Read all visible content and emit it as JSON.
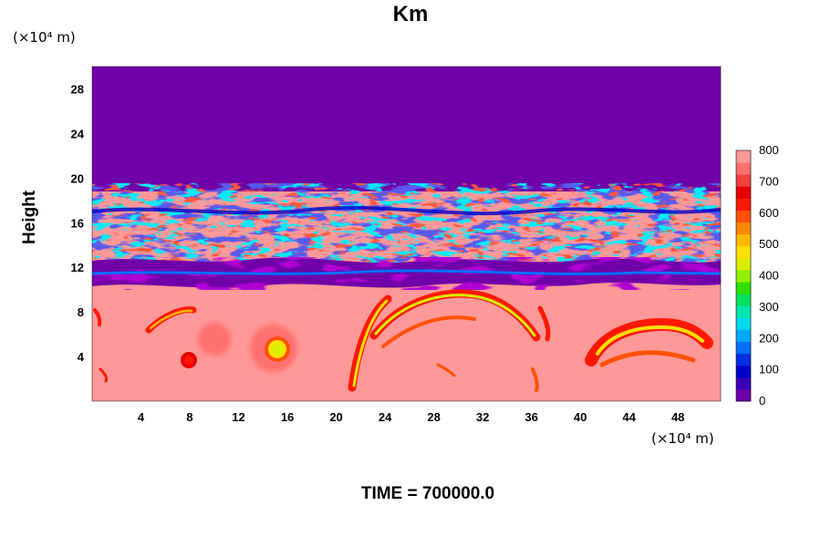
{
  "chart_data": {
    "type": "heatmap",
    "title": "Km",
    "xlabel": "",
    "x_unit": "(×10⁴ m)",
    "ylabel": "Height",
    "y_unit": "(×10⁴ m)",
    "xlim": [
      0,
      51.5
    ],
    "ylim": [
      0,
      30
    ],
    "x_ticks": [
      "4",
      "8",
      "12",
      "16",
      "20",
      "24",
      "28",
      "32",
      "36",
      "40",
      "44",
      "48"
    ],
    "x_tick_values": [
      4,
      8,
      12,
      16,
      20,
      24,
      28,
      32,
      36,
      40,
      44,
      48
    ],
    "y_ticks": [
      "4",
      "8",
      "12",
      "16",
      "20",
      "24",
      "28"
    ],
    "y_tick_values": [
      4,
      8,
      12,
      16,
      20,
      24,
      28
    ],
    "colorbar": {
      "min": 0,
      "max": 800,
      "labels": [
        "0",
        "100",
        "200",
        "300",
        "400",
        "500",
        "600",
        "700",
        "800"
      ],
      "label_values": [
        0,
        100,
        200,
        300,
        400,
        500,
        600,
        700,
        800
      ],
      "colors": [
        "#7000a8",
        "#3a00b8",
        "#0000c8",
        "#0030e0",
        "#0070ff",
        "#00a8ff",
        "#00d8f0",
        "#00e8b0",
        "#00e060",
        "#30e000",
        "#90f000",
        "#d8f000",
        "#ffe000",
        "#ffb800",
        "#ff8800",
        "#ff5000",
        "#ff1800",
        "#e80000",
        "#f04040",
        "#ff7070",
        "#ff9898"
      ]
    },
    "annotation": "TIME = 700000.0"
  }
}
